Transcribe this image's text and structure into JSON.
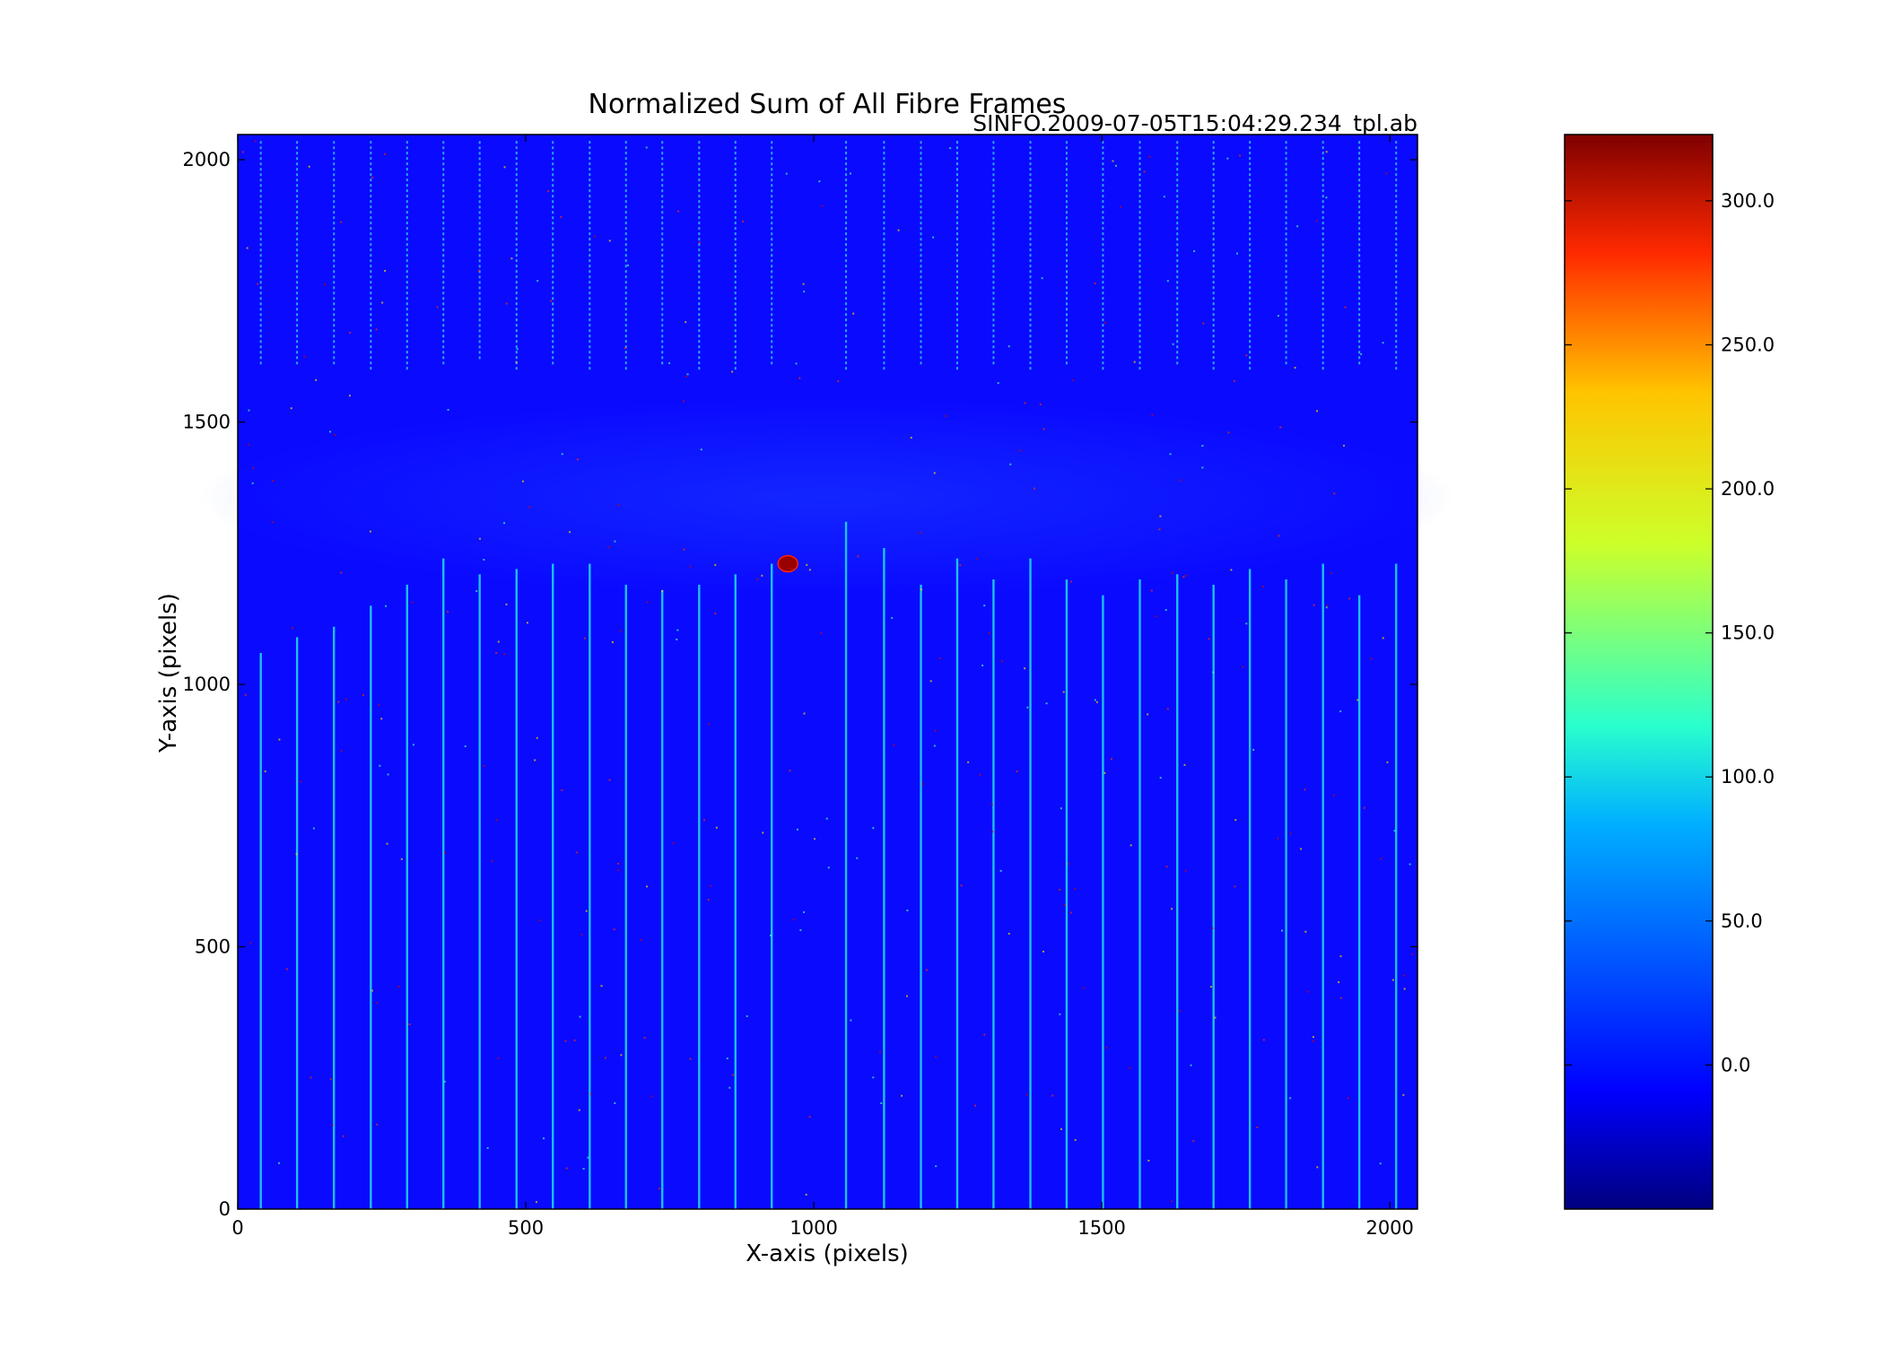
{
  "chart_data": {
    "type": "heatmap",
    "title": "Normalized Sum of All Fibre Frames",
    "subtitle": "SINFO.2009-07-05T15:04:29.234_tpl.ab",
    "xlabel": "X-axis (pixels)",
    "ylabel": "Y-axis (pixels)",
    "xlim": [
      0,
      2048
    ],
    "ylim": [
      0,
      2048
    ],
    "x_ticks": [
      0,
      500,
      1000,
      1500,
      2000
    ],
    "y_ticks": [
      0,
      500,
      1000,
      1500,
      2000
    ],
    "grid": false,
    "colormap": "jet",
    "background_value": 0.0,
    "colorbar": {
      "min": -50,
      "max": 323,
      "ticks": [
        0.0,
        50.0,
        100.0,
        150.0,
        200.0,
        250.0,
        300.0
      ],
      "tick_labels": [
        "0.0",
        "50.0",
        "100.0",
        "150.0",
        "200.0",
        "250.0",
        "300.0"
      ]
    },
    "fibre_traces": {
      "x_positions": [
        40,
        103,
        167,
        231,
        294,
        357,
        420,
        484,
        547,
        611,
        674,
        737,
        801,
        864,
        927,
        1056,
        1122,
        1186,
        1249,
        1312,
        1376,
        1439,
        1502,
        1566,
        1631,
        1694,
        1757,
        1820,
        1884,
        1947,
        2011
      ],
      "lower_top_y": [
        1060,
        1090,
        1110,
        1150,
        1190,
        1240,
        1210,
        1220,
        1230,
        1230,
        1190,
        1180,
        1190,
        1210,
        1230,
        1310,
        1260,
        1190,
        1240,
        1200,
        1240,
        1200,
        1170,
        1200,
        1210,
        1190,
        1220,
        1200,
        1230,
        1170,
        1230
      ],
      "upper_bottom_y": [
        1610,
        1610,
        1610,
        1600,
        1600,
        1610,
        1620,
        1600,
        1610,
        1600,
        1600,
        1610,
        1600,
        1600,
        1610,
        1600,
        1600,
        1610,
        1600,
        1610,
        1600,
        1610,
        1600,
        1600,
        1610,
        1600,
        1600,
        1610,
        1600,
        1610,
        1600
      ],
      "peak_value": 90
    },
    "hot_spot": {
      "x": 955,
      "y": 1230,
      "value": 323
    }
  }
}
